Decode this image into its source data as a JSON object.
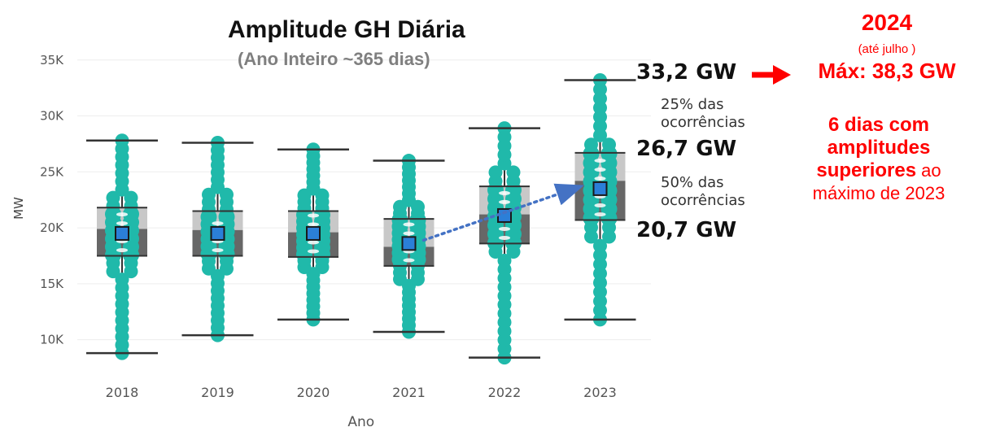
{
  "chart_data": {
    "type": "box",
    "title": "Amplitude GH Diária",
    "subtitle": "(Ano Inteiro ~365 dias)",
    "xlabel": "Ano",
    "ylabel": "MW",
    "ylim": [
      7500,
      36000
    ],
    "yticks": [
      10000,
      15000,
      20000,
      25000,
      30000,
      35000
    ],
    "ytick_labels": [
      "10K",
      "15K",
      "20K",
      "25K",
      "30K",
      "35K"
    ],
    "categories": [
      "2018",
      "2019",
      "2020",
      "2021",
      "2022",
      "2023"
    ],
    "boxes": [
      {
        "min": 8800,
        "q1": 17500,
        "median": 19900,
        "q3": 21800,
        "max": 27800,
        "mean": 19500
      },
      {
        "min": 10400,
        "q1": 17500,
        "median": 19800,
        "q3": 21500,
        "max": 27600,
        "mean": 19500
      },
      {
        "min": 11800,
        "q1": 17400,
        "median": 19600,
        "q3": 21500,
        "max": 27000,
        "mean": 19500
      },
      {
        "min": 10700,
        "q1": 16600,
        "median": 18300,
        "q3": 20800,
        "max": 26000,
        "mean": 18600
      },
      {
        "min": 8400,
        "q1": 18600,
        "median": 21200,
        "q3": 23700,
        "max": 28900,
        "mean": 21100
      },
      {
        "min": 11800,
        "q1": 20700,
        "median": 24200,
        "q3": 26700,
        "max": 33200,
        "mean": 23500
      }
    ],
    "trend_arrow": {
      "from_category": "2021",
      "to_category": "2023"
    },
    "colors": {
      "dots": "#20b9aa",
      "q_lower": "#676767",
      "q_upper": "#c8c8c8",
      "mean": "#2b7fd8",
      "whisker": "#333333",
      "arrow": "#4472c4",
      "highlight": "#ff0000"
    }
  },
  "annotations": {
    "max_2023": "33,2 GW",
    "pct25": [
      "25% das",
      "ocorrências"
    ],
    "q3_2023": "26,7 GW",
    "pct50": [
      "50% das",
      "ocorrências"
    ],
    "q1_2023": "20,7 GW",
    "year_2024": "2024",
    "ate_julho": "(até julho )",
    "max_2024": "Máx: 38,3 GW",
    "days_line1": "6 dias com",
    "days_line2": "amplitudes",
    "days_line3_bold": "superiores",
    "days_line3_rest": " ao",
    "days_line4": "máximo de 2023"
  }
}
